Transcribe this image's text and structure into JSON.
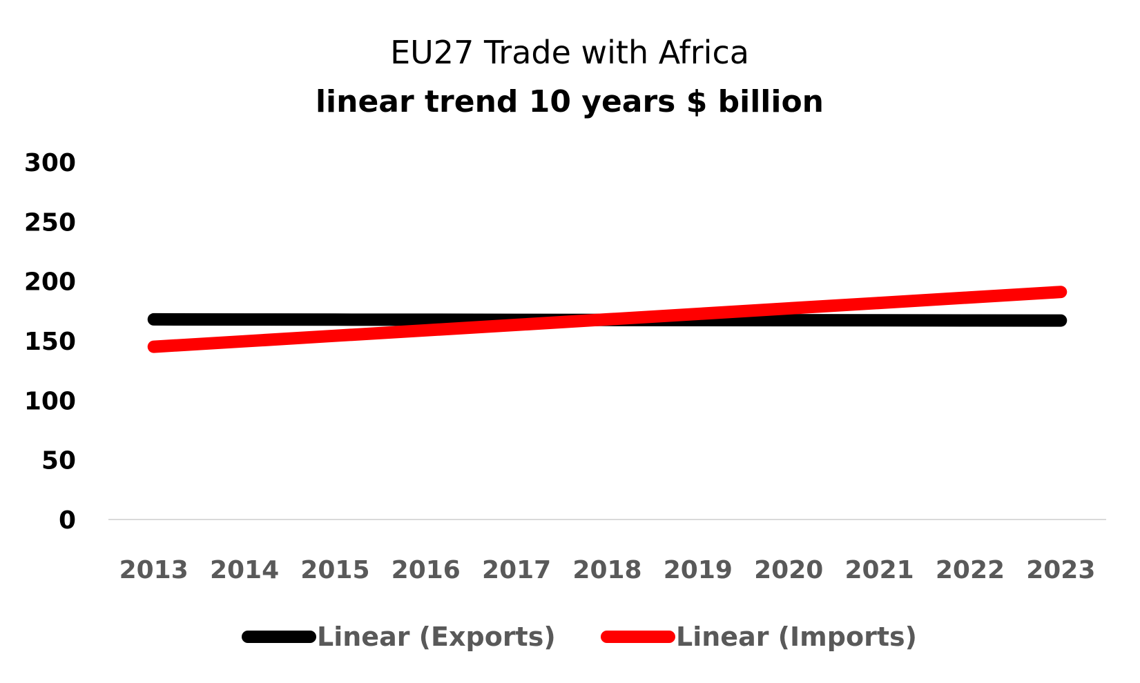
{
  "chart_data": {
    "type": "line",
    "title": "EU27 Trade with Africa",
    "subtitle": "linear trend 10 years $ billion",
    "xlabel": "",
    "ylabel": "",
    "categories": [
      "2013",
      "2014",
      "2015",
      "2016",
      "2017",
      "2018",
      "2019",
      "2020",
      "2021",
      "2022",
      "2023"
    ],
    "ylim": [
      0,
      300
    ],
    "yticks": [
      "0",
      "50",
      "100",
      "150",
      "200",
      "250",
      "300"
    ],
    "grid": false,
    "legend_position": "bottom",
    "series": [
      {
        "name": "Linear (Exports)",
        "color": "#000000",
        "values": [
          168,
          167.9,
          167.8,
          167.7,
          167.6,
          167.5,
          167.4,
          167.3,
          167.2,
          167.1,
          167
        ]
      },
      {
        "name": "Linear (Imports)",
        "color": "#ff0000",
        "values": [
          145,
          149.6,
          154.2,
          158.8,
          163.4,
          168,
          172.6,
          177.2,
          181.8,
          186.4,
          191
        ]
      }
    ]
  }
}
